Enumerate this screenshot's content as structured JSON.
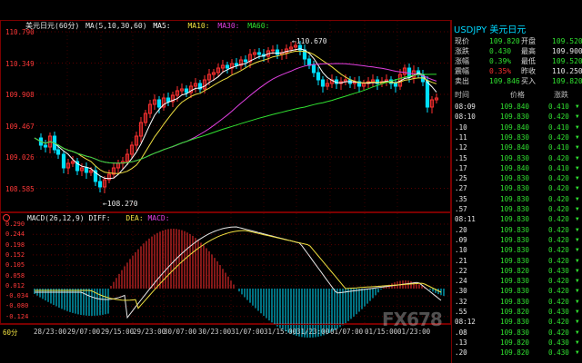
{
  "header": {
    "title": "美元日元(60分)",
    "ma_label": "MA(5,10,30,60)",
    "ma5_label": "MA5:",
    "ma10_label": "MA10:",
    "ma30_label": "MA30:",
    "ma60_label": "MA60:"
  },
  "price_axis": [
    "110.790",
    "110.349",
    "109.908",
    "109.467",
    "109.026",
    "108.585"
  ],
  "annotations": {
    "high": "110.670",
    "low": "108.270"
  },
  "macd_header": {
    "label": "MACD(26,12,9)",
    "diff": "DIFF:",
    "dea": "DEA:",
    "macd": "MACD:"
  },
  "macd_axis": [
    "0.290",
    "0.244",
    "0.198",
    "0.152",
    "0.105",
    "0.058",
    "0.012",
    "-0.034",
    "-0.080",
    "-0.124"
  ],
  "macd_sub_label": "▲",
  "time_axis": [
    "60分",
    "28/23:00",
    "29/07:00",
    "29/15:00",
    "29/23:00",
    "30/07:00",
    "30/23:00",
    "31/07:00",
    "31/15:00",
    "31/23:00",
    "01/07:00",
    "01/15:00",
    "01/23:00"
  ],
  "quote": {
    "title": "USDJPY 美元日元",
    "rows": [
      {
        "l1": "现价",
        "v1": "109.820",
        "l2": "开盘",
        "v2": "109.520"
      },
      {
        "l1": "涨跌",
        "v1": "0.430",
        "l2": "最高",
        "v2": "109.900"
      },
      {
        "l1": "涨幅",
        "v1": "0.39%",
        "l2": "最低",
        "v2": "109.520"
      },
      {
        "l1": "震幅",
        "v1": "0.35%",
        "l2": "昨收",
        "v2": "110.250"
      },
      {
        "l1": "卖出",
        "v1": "109.846",
        "l2": "买入",
        "v2": "109.820"
      }
    ],
    "tick_head": {
      "time": "时间",
      "price": "价格",
      "change": "涨跌"
    },
    "ticks": [
      {
        "t": "08:09",
        "p": "109.840",
        "c": "0.410"
      },
      {
        "t": "08:10",
        "p": "109.830",
        "c": "0.420"
      },
      {
        "t": ".10",
        "p": "109.840",
        "c": "0.410"
      },
      {
        "t": ".11",
        "p": "109.830",
        "c": "0.420"
      },
      {
        "t": ".12",
        "p": "109.840",
        "c": "0.410"
      },
      {
        "t": ".15",
        "p": "109.830",
        "c": "0.420"
      },
      {
        "t": ".17",
        "p": "109.840",
        "c": "0.410"
      },
      {
        "t": ".25",
        "p": "109.830",
        "c": "0.420"
      },
      {
        "t": ".27",
        "p": "109.830",
        "c": "0.420"
      },
      {
        "t": ".35",
        "p": "109.830",
        "c": "0.420"
      },
      {
        "t": ".57",
        "p": "109.830",
        "c": "0.420"
      },
      {
        "t": "08:11",
        "p": "109.830",
        "c": "0.420"
      },
      {
        "t": ".20",
        "p": "109.830",
        "c": "0.420"
      },
      {
        "t": ".09",
        "p": "109.830",
        "c": "0.420"
      },
      {
        "t": ".10",
        "p": "109.830",
        "c": "0.420"
      },
      {
        "t": ".21",
        "p": "109.830",
        "c": "0.420"
      },
      {
        "t": ".22",
        "p": "109.820",
        "c": "0.430"
      },
      {
        "t": ".24",
        "p": "109.830",
        "c": "0.420"
      },
      {
        "t": ".30",
        "p": "109.830",
        "c": "0.420"
      },
      {
        "t": ".32",
        "p": "109.830",
        "c": "0.420"
      },
      {
        "t": ".55",
        "p": "109.820",
        "c": "0.430"
      },
      {
        "t": "08:12",
        "p": "109.830",
        "c": "0.420"
      },
      {
        "t": ".08",
        "p": "109.830",
        "c": "0.420"
      },
      {
        "t": ".13",
        "p": "109.820",
        "c": "0.430"
      },
      {
        "t": ".20",
        "p": "109.820",
        "c": "0.430"
      }
    ]
  },
  "watermark": "FX678",
  "colors": {
    "up": "#ff3030",
    "down": "#00e0ff",
    "ma5": "#ffffff",
    "ma10": "#f0e040",
    "ma30": "#e040e0",
    "ma60": "#30e030"
  }
}
